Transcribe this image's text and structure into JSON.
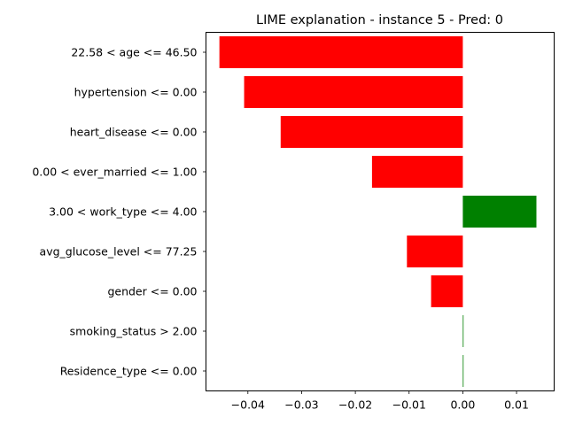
{
  "chart_data": {
    "type": "bar",
    "orientation": "horizontal",
    "title": "LIME explanation - instance 5 - Pred: 0",
    "xlabel": "",
    "ylabel": "",
    "xlim": [
      -0.0478,
      0.017
    ],
    "xticks": [
      -0.04,
      -0.03,
      -0.02,
      -0.01,
      0.0,
      0.01
    ],
    "xtick_labels": [
      "−0.04",
      "−0.03",
      "−0.02",
      "−0.01",
      "0.00",
      "0.01"
    ],
    "grid": false,
    "legend": "none",
    "categories": [
      "22.58 < age <= 46.50",
      "hypertension <= 0.00",
      "heart_disease <= 0.00",
      "0.00 < ever_married <= 1.00",
      "3.00 < work_type <= 4.00",
      "avg_glucose_level <= 77.25",
      "gender <= 0.00",
      "smoking_status > 2.00",
      "Residence_type <= 0.00"
    ],
    "values": [
      -0.0453,
      -0.0407,
      -0.0339,
      -0.0169,
      0.0137,
      -0.0104,
      -0.0059,
      0.0001,
      0.0001
    ],
    "colors": {
      "negative": "#ff0000",
      "positive": "#008000"
    }
  }
}
